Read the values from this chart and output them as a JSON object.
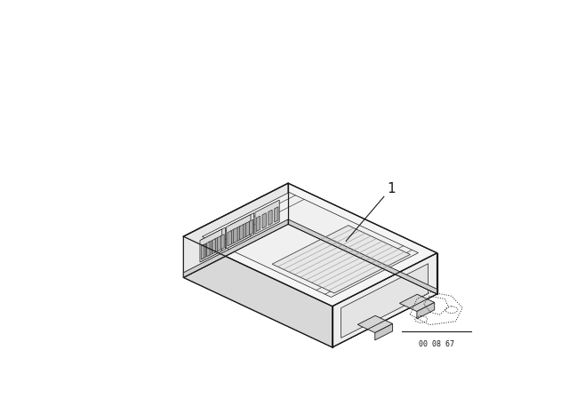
{
  "background_color": "#ffffff",
  "line_color": "#1a1a1a",
  "fill_top": "#f5f5f5",
  "fill_left": "#e8e8e8",
  "fill_right": "#eeeeee",
  "fill_back": "#e0e0e0",
  "fill_base": "#d8d8d8",
  "label_number": "1",
  "ref_number": "00 08 67",
  "fig_width": 6.4,
  "fig_height": 4.48,
  "dpi": 100
}
